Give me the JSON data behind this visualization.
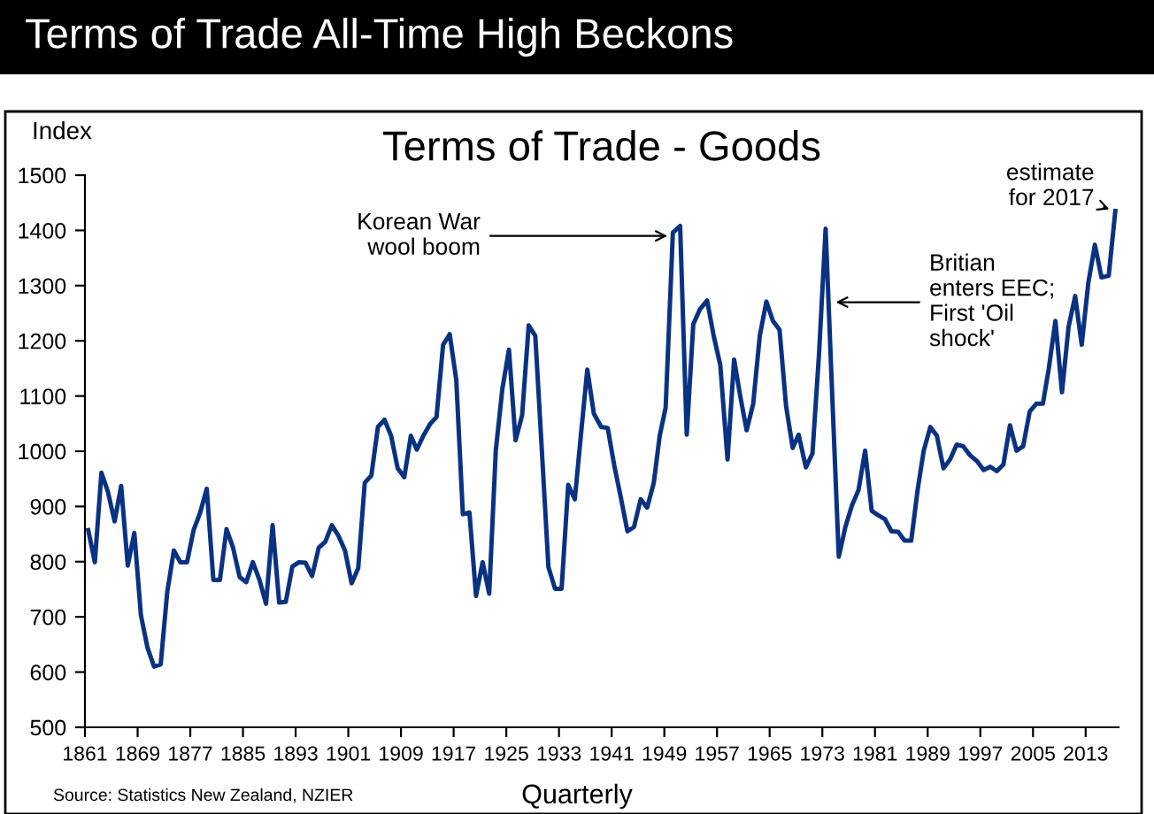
{
  "chart_data": {
    "type": "line",
    "title": "Terms of Trade - Goods",
    "subtitle": "Terms of Trade All-Time High Beckons",
    "xlabel": "Quarterly",
    "ylabel": "Index",
    "series": [
      {
        "color": "#0a3282",
        "x": [
          1861.5,
          1862.5,
          1863.5,
          1864.5,
          1865.5,
          1866.5,
          1867.5,
          1868.5,
          1869.5,
          1870.5,
          1871.5,
          1872.5,
          1873.5,
          1874.5,
          1875.5,
          1876.5,
          1877.5,
          1878.5,
          1879.5,
          1880.5,
          1881.5,
          1882.5,
          1883.5,
          1884.5,
          1885.5,
          1886.5,
          1887.5,
          1888.5,
          1889.5,
          1890.5,
          1891.5,
          1892.5,
          1893.5,
          1894.5,
          1895.5,
          1896.5,
          1897.5,
          1898.5,
          1899.5,
          1900.5,
          1901.5,
          1902.5,
          1903.5,
          1904.5,
          1905.5,
          1906.5,
          1907.5,
          1908.5,
          1909.5,
          1910.5,
          1911.4,
          1912.4,
          1913.4,
          1914.4,
          1915.4,
          1916.4,
          1917.4,
          1918.4,
          1919.4,
          1920.4,
          1921.4,
          1922.4,
          1923.4,
          1924.4,
          1925.4,
          1926.4,
          1927.4,
          1928.4,
          1929.4,
          1930.4,
          1931.4,
          1932.4,
          1933.4,
          1934.4,
          1935.4,
          1936.4,
          1937.3,
          1938.3,
          1939.4,
          1940.4,
          1941.4,
          1942.4,
          1943.4,
          1944.4,
          1945.4,
          1946.4,
          1947.4,
          1948.3,
          1949.2,
          1950.3,
          1951.4,
          1952.4,
          1953.4,
          1954.4,
          1955.5,
          1956.5,
          1957.5,
          1958.6,
          1959.6,
          1960.5,
          1961.5,
          1962.5,
          1963.5,
          1964.5,
          1965.5,
          1966.5,
          1967.5,
          1968.5,
          1969.4,
          1970.5,
          1971.5,
          1972.5,
          1973.5,
          1974.5,
          1975.5,
          1976.5,
          1977.5,
          1978.5,
          1979.5,
          1980.5,
          1981.5,
          1982.5,
          1983.5,
          1984.5,
          1985.5,
          1986.5,
          1987.5,
          1988.4,
          1989.4,
          1990.4,
          1991.4,
          1992.4,
          1993.4,
          1994.4,
          1995.4,
          1996.5,
          1997.5,
          1998.5,
          1999.5,
          2000.5,
          2001.5,
          2002.5,
          2003.5,
          2004.5,
          2005.5,
          2006.5,
          2007.4,
          2008.4,
          2009.4,
          2010.4,
          2011.4,
          2012.4,
          2013.4,
          2014.4,
          2015.4,
          2016.5,
          2017.5
        ],
        "values": [
          857,
          799,
          961,
          926,
          873,
          937,
          793,
          852,
          703,
          644,
          610,
          614,
          745,
          820,
          799,
          799,
          857,
          889,
          932,
          767,
          767,
          859,
          825,
          772,
          763,
          799,
          767,
          724,
          866,
          726,
          727,
          791,
          799,
          798,
          774,
          825,
          836,
          866,
          847,
          820,
          761,
          788,
          943,
          956,
          1044,
          1057,
          1028,
          969,
          953,
          1028,
          1003,
          1028,
          1049,
          1062,
          1193,
          1212,
          1129,
          886,
          889,
          738,
          799,
          742,
          1001,
          1113,
          1184,
          1020,
          1065,
          1228,
          1209,
          1001,
          790,
          751,
          751,
          939,
          913,
          1038,
          1148,
          1068,
          1044,
          1042,
          974,
          916,
          855,
          863,
          913,
          898,
          943,
          1028,
          1079,
          1396,
          1408,
          1030,
          1230,
          1257,
          1273,
          1209,
          1156,
          985,
          1166,
          1102,
          1038,
          1086,
          1209,
          1271,
          1236,
          1220,
          1081,
          1006,
          1030,
          971,
          996,
          1177,
          1403,
          1102,
          809,
          863,
          902,
          930,
          1001,
          892,
          884,
          877,
          855,
          854,
          838,
          838,
          932,
          1001,
          1044,
          1028,
          969,
          985,
          1012,
          1009,
          993,
          982,
          966,
          972,
          964,
          976,
          1047,
          1001,
          1009,
          1072,
          1086,
          1086,
          1150,
          1236,
          1107,
          1225,
          1281,
          1193,
          1305,
          1374,
          1315,
          1318,
          1435
        ]
      }
    ],
    "xlim": [
      1861,
      2018
    ],
    "xticks": [
      1861,
      1869,
      1877,
      1885,
      1893,
      1901,
      1909,
      1917,
      1925,
      1933,
      1941,
      1949,
      1957,
      1965,
      1973,
      1981,
      1989,
      1997,
      2005,
      2013
    ],
    "ylim": [
      500,
      1500
    ],
    "yticks": [
      500,
      600,
      700,
      800,
      900,
      1000,
      1100,
      1200,
      1300,
      1400,
      1500
    ],
    "grid": false,
    "legend": false,
    "marker": "none",
    "line_style": "solid",
    "annotations": [
      {
        "text": "Korean War\nwool boom",
        "x": 1950.2,
        "y": 1390
      },
      {
        "text": "Britian\nenters EEC;\nFirst 'Oil\nshock'",
        "x": 1974.3,
        "y": 1270
      },
      {
        "text": "estimate\nfor 2017",
        "x": 2017.3,
        "y": 1435
      },
      "Source: Statistics New Zealand, NZIER"
    ]
  }
}
